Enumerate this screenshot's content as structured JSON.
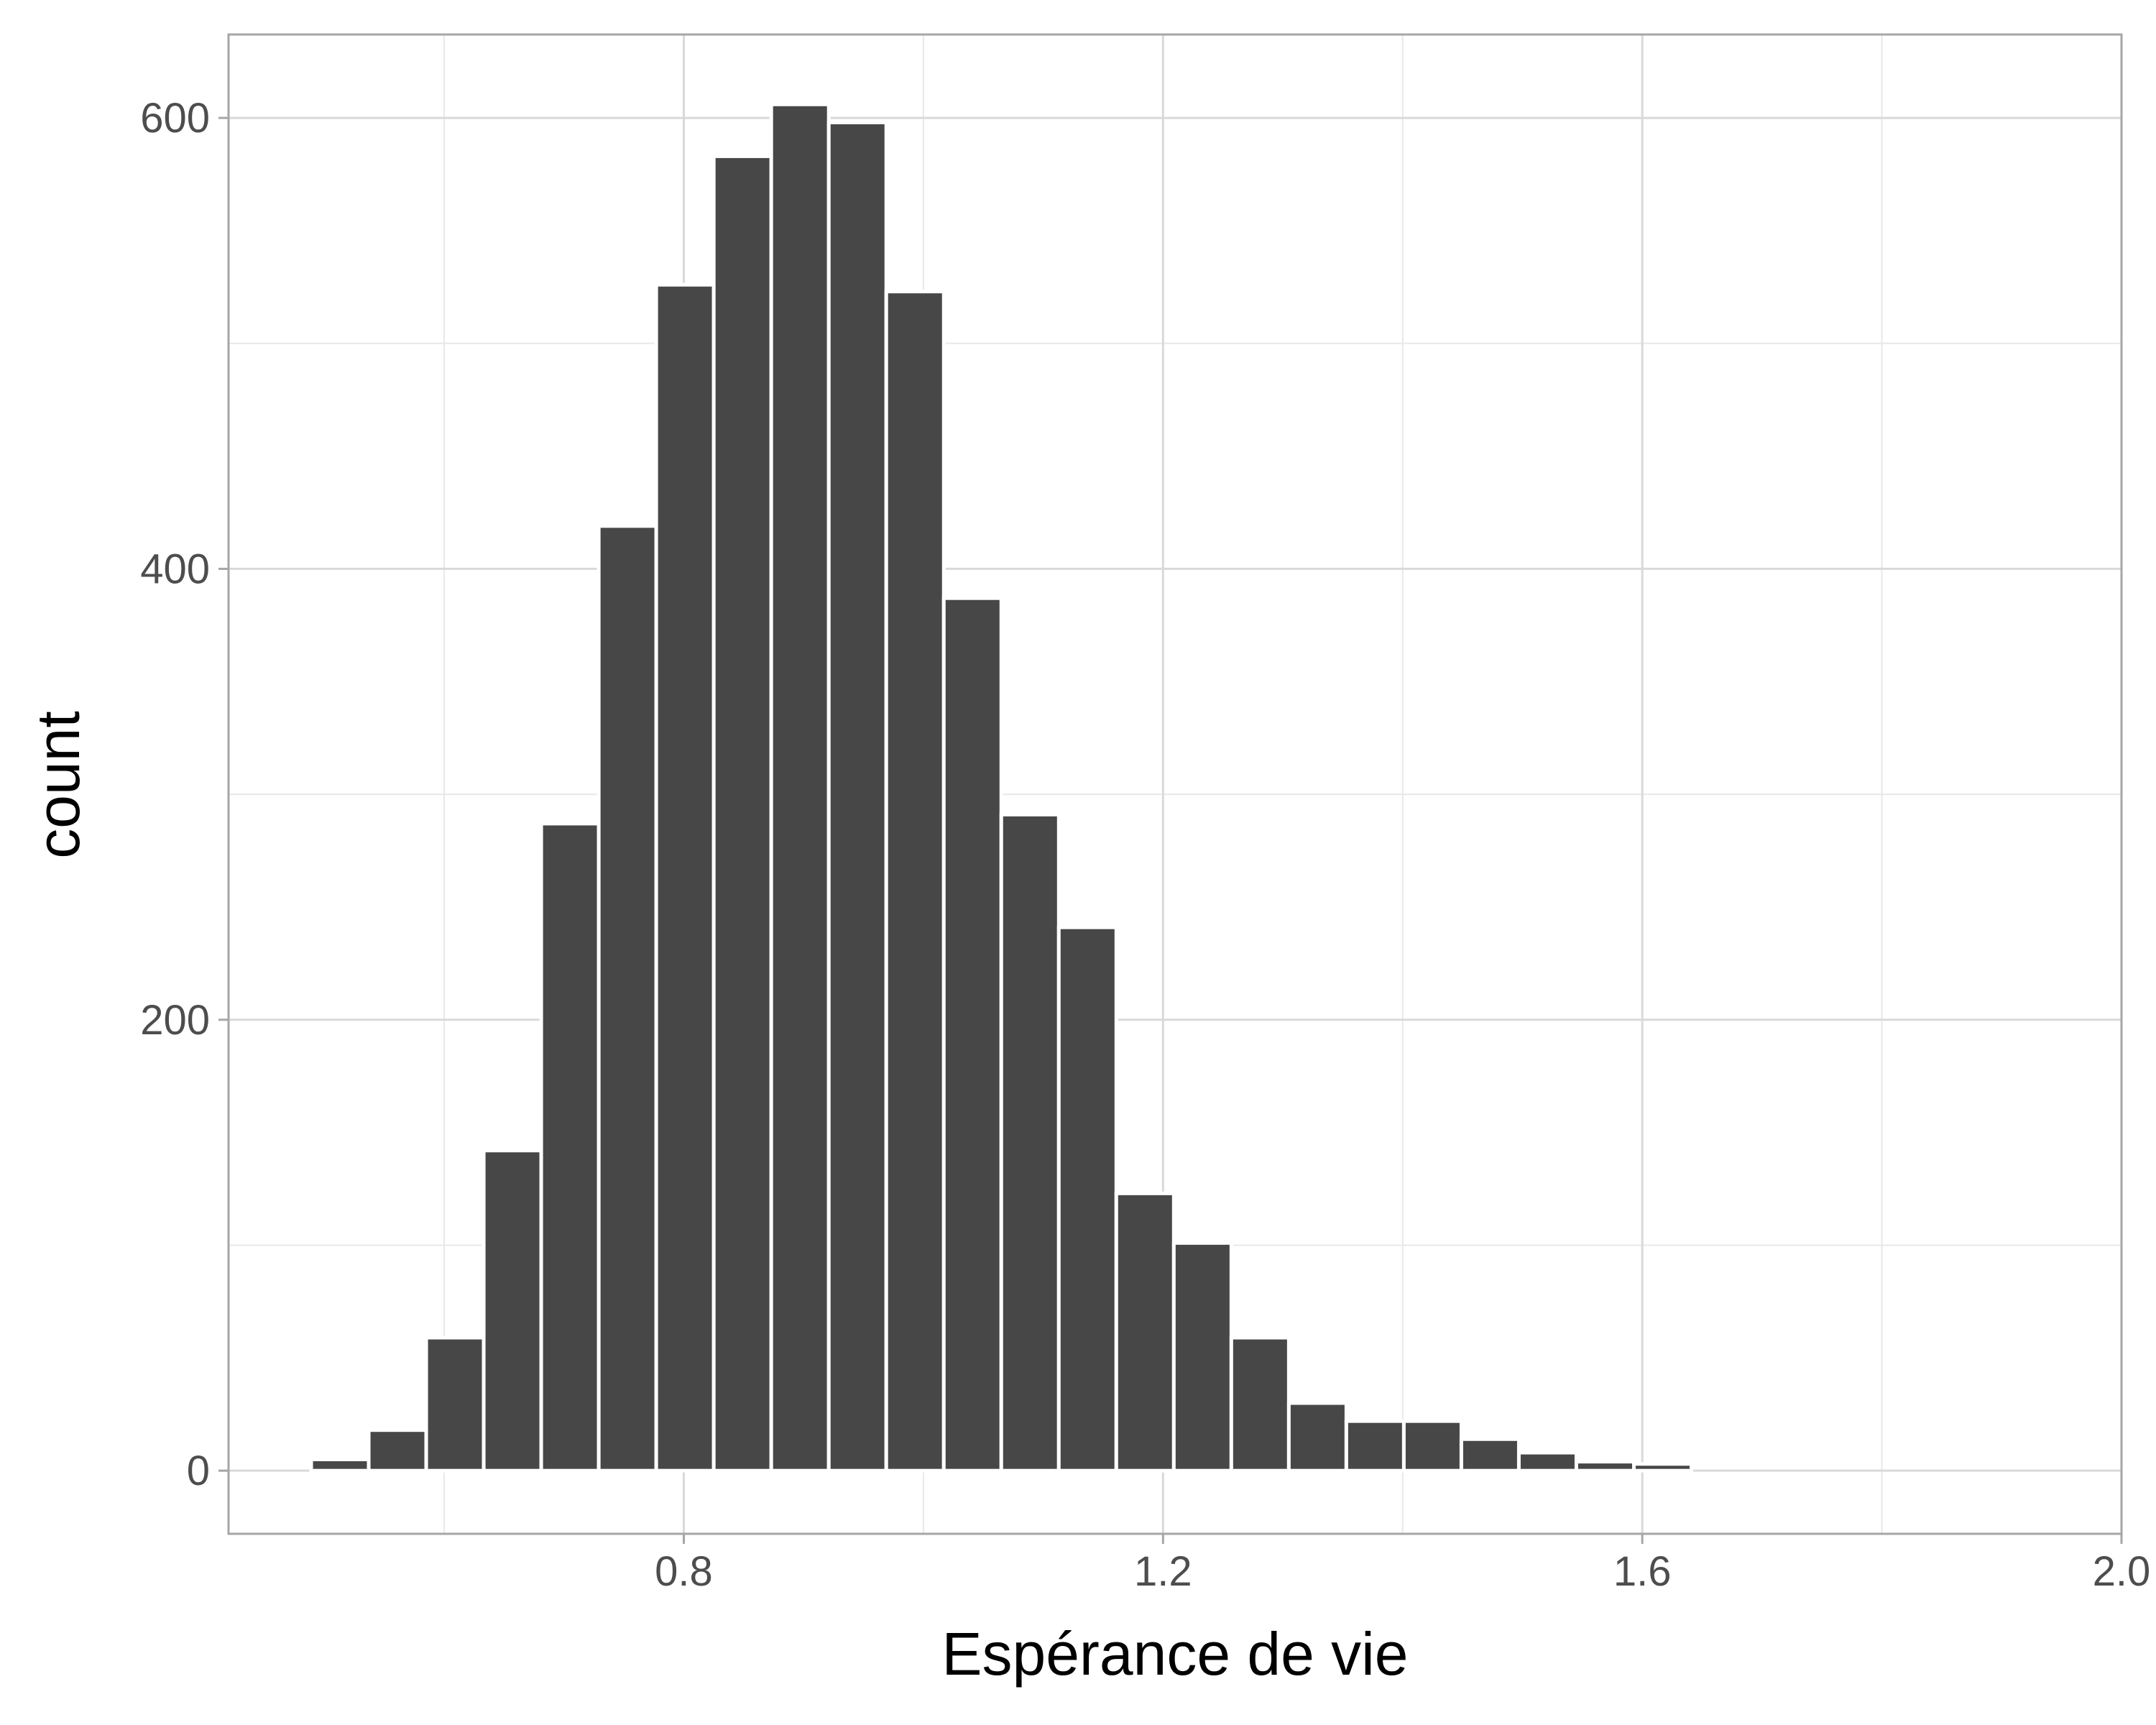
{
  "chart_data": {
    "type": "bar",
    "title": "",
    "xlabel": "Espérance de vie",
    "ylabel": "count",
    "xlim": [
      0.42,
      2.0
    ],
    "ylim": [
      -28,
      637
    ],
    "x_ticks": [
      0.8,
      1.2,
      1.6,
      2.0
    ],
    "x_tick_labels": [
      "0.8",
      "1.2",
      "1.6",
      "2.0"
    ],
    "x_minor_ticks": [
      0.6,
      1.0,
      1.4,
      1.8
    ],
    "y_ticks": [
      0,
      200,
      400,
      600
    ],
    "y_tick_labels": [
      "0",
      "200",
      "400",
      "600"
    ],
    "y_minor_ticks": [
      100,
      300,
      500
    ],
    "grid": true,
    "bar_color": "#474747",
    "bin_width": 0.048,
    "bins": [
      {
        "x": 0.513,
        "count": 5
      },
      {
        "x": 0.561,
        "count": 18
      },
      {
        "x": 0.609,
        "count": 59
      },
      {
        "x": 0.657,
        "count": 142
      },
      {
        "x": 0.705,
        "count": 287
      },
      {
        "x": 0.753,
        "count": 419
      },
      {
        "x": 0.801,
        "count": 526
      },
      {
        "x": 0.849,
        "count": 583
      },
      {
        "x": 0.897,
        "count": 606
      },
      {
        "x": 0.945,
        "count": 598
      },
      {
        "x": 0.993,
        "count": 523
      },
      {
        "x": 1.041,
        "count": 387
      },
      {
        "x": 1.089,
        "count": 291
      },
      {
        "x": 1.137,
        "count": 241
      },
      {
        "x": 1.185,
        "count": 123
      },
      {
        "x": 1.233,
        "count": 101
      },
      {
        "x": 1.281,
        "count": 59
      },
      {
        "x": 1.329,
        "count": 30
      },
      {
        "x": 1.377,
        "count": 22
      },
      {
        "x": 1.425,
        "count": 22
      },
      {
        "x": 1.473,
        "count": 14
      },
      {
        "x": 1.521,
        "count": 8
      },
      {
        "x": 1.569,
        "count": 4
      },
      {
        "x": 1.617,
        "count": 3
      },
      {
        "x": 1.665,
        "count": 0
      },
      {
        "x": 1.713,
        "count": 0
      },
      {
        "x": 1.761,
        "count": 0
      },
      {
        "x": 1.809,
        "count": 0
      },
      {
        "x": 1.857,
        "count": 0
      },
      {
        "x": 1.905,
        "count": 0
      }
    ]
  }
}
